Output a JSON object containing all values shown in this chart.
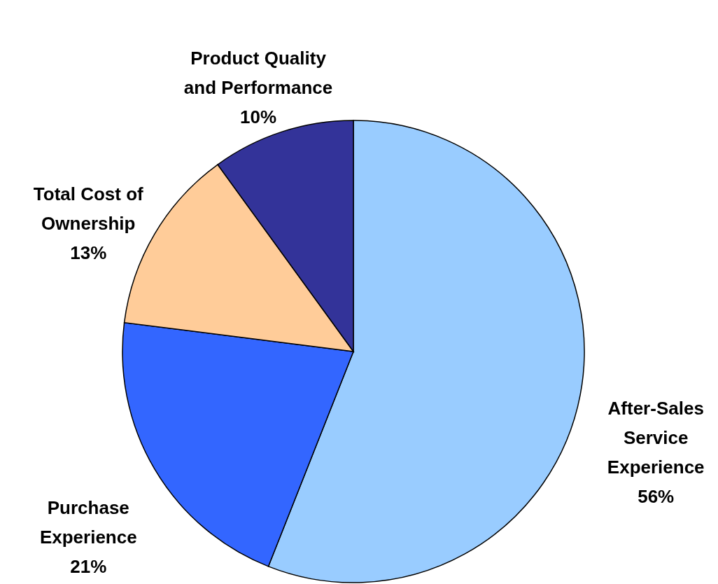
{
  "chart_data": {
    "type": "pie",
    "categories": [
      "After-Sales Service Experience",
      "Purchase Experience",
      "Total Cost of Ownership",
      "Product Quality and Performance"
    ],
    "values": [
      56,
      21,
      13,
      10
    ],
    "value_labels": [
      "56%",
      "21%",
      "13%",
      "10%"
    ],
    "colors": [
      "#99ccff",
      "#3366ff",
      "#ffcc99",
      "#333399"
    ]
  }
}
